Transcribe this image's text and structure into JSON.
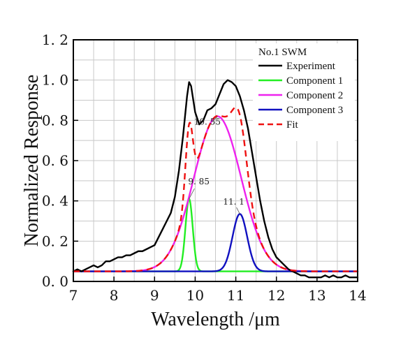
{
  "chart_data": {
    "type": "line",
    "xlabel": "Wavelength /μm",
    "ylabel": "Normalized Response",
    "xlim": [
      7,
      14
    ],
    "ylim": [
      0.0,
      1.2
    ],
    "xticks": [
      "7",
      "8",
      "9",
      "10",
      "11",
      "12",
      "13",
      "14"
    ],
    "yticks": [
      "0. 0",
      "0. 2",
      "0. 4",
      "0. 6",
      "0. 8",
      "1. 0",
      "1. 2"
    ],
    "grid": true,
    "legend": {
      "title": "No.1  SWM",
      "placement": "top-right"
    },
    "series": [
      {
        "name": "Experiment",
        "color": "#000000",
        "style": "solid",
        "x": [
          7.0,
          7.1,
          7.2,
          7.3,
          7.4,
          7.5,
          7.6,
          7.7,
          7.8,
          7.9,
          8.0,
          8.1,
          8.2,
          8.3,
          8.4,
          8.5,
          8.6,
          8.7,
          8.8,
          8.9,
          9.0,
          9.1,
          9.2,
          9.3,
          9.4,
          9.5,
          9.6,
          9.7,
          9.8,
          9.85,
          9.9,
          10.0,
          10.1,
          10.2,
          10.3,
          10.4,
          10.5,
          10.6,
          10.7,
          10.8,
          10.9,
          11.0,
          11.1,
          11.2,
          11.3,
          11.4,
          11.5,
          11.6,
          11.7,
          11.8,
          11.9,
          12.0,
          12.1,
          12.2,
          12.3,
          12.4,
          12.5,
          12.6,
          12.7,
          12.8,
          12.9,
          13.0,
          13.1,
          13.2,
          13.3,
          13.4,
          13.5,
          13.6,
          13.7,
          13.8,
          13.9,
          14.0
        ],
        "y": [
          0.05,
          0.06,
          0.05,
          0.06,
          0.07,
          0.08,
          0.07,
          0.08,
          0.1,
          0.1,
          0.11,
          0.12,
          0.12,
          0.13,
          0.13,
          0.14,
          0.15,
          0.15,
          0.16,
          0.17,
          0.18,
          0.22,
          0.26,
          0.3,
          0.34,
          0.42,
          0.55,
          0.72,
          0.92,
          0.99,
          0.97,
          0.84,
          0.78,
          0.8,
          0.85,
          0.86,
          0.88,
          0.93,
          0.98,
          1.0,
          0.99,
          0.97,
          0.92,
          0.85,
          0.76,
          0.64,
          0.52,
          0.4,
          0.3,
          0.22,
          0.16,
          0.12,
          0.1,
          0.08,
          0.06,
          0.05,
          0.04,
          0.03,
          0.03,
          0.02,
          0.02,
          0.02,
          0.02,
          0.03,
          0.02,
          0.03,
          0.02,
          0.02,
          0.03,
          0.02,
          0.02,
          0.02
        ]
      },
      {
        "name": "Component 1",
        "color": "#22ee22",
        "style": "solid",
        "gaussian": {
          "center": 9.85,
          "amplitude": 0.36,
          "sigma": 0.09,
          "baseline": 0.05
        }
      },
      {
        "name": "Component 2",
        "color": "#ee22ee",
        "style": "solid",
        "gaussian": {
          "center": 10.55,
          "amplitude": 0.77,
          "sigma": 0.58,
          "baseline": 0.05
        }
      },
      {
        "name": "Component 3",
        "color": "#1010c0",
        "style": "solid",
        "gaussian": {
          "center": 11.1,
          "amplitude": 0.285,
          "sigma": 0.18,
          "baseline": 0.05
        }
      },
      {
        "name": "Fit",
        "color": "#ee1111",
        "style": "dashed",
        "sum_of": [
          "Component 1",
          "Component 2",
          "Component 3"
        ],
        "baseline": 0.05
      }
    ],
    "annotations": [
      {
        "text": "9. 85",
        "x": 9.85,
        "y": 0.41
      },
      {
        "text": "10. 55",
        "x": 10.55,
        "y": 0.82
      },
      {
        "text": "11. 1",
        "x": 11.1,
        "y": 0.335
      }
    ]
  }
}
